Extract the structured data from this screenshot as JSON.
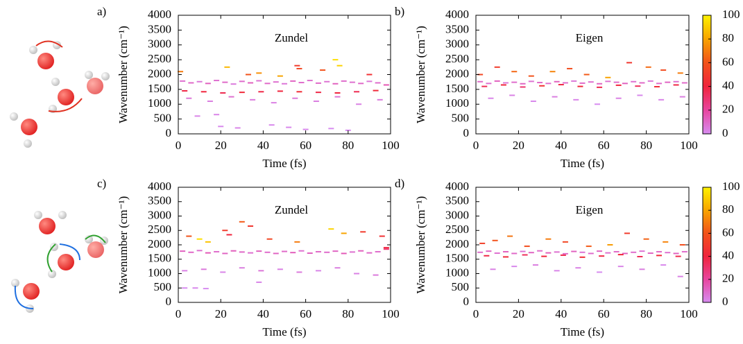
{
  "chart_data": [
    {
      "type": "scatter",
      "panel_label": "a)",
      "title": "Zundel",
      "xlabel": "Time (fs)",
      "ylabel": "Wavenumber (cm⁻¹)",
      "xlim": [
        0,
        100
      ],
      "xticks": [
        0,
        20,
        40,
        60,
        80,
        100
      ],
      "ylim": [
        0,
        4000
      ],
      "yticks": [
        0,
        500,
        1000,
        1500,
        2000,
        2500,
        3000,
        3500,
        4000
      ],
      "clim": [
        0,
        100
      ],
      "colormap": [
        "#d78cf0",
        "#e8459f",
        "#f0243c",
        "#f2521a",
        "#f8a400",
        "#fff200"
      ],
      "x": [
        2,
        6,
        10,
        14,
        18,
        22,
        26,
        30,
        34,
        38,
        42,
        46,
        50,
        54,
        58,
        62,
        66,
        70,
        74,
        78,
        82,
        86,
        90,
        94,
        98,
        3,
        12,
        21,
        30,
        39,
        48,
        57,
        66,
        75,
        84,
        93,
        5,
        15,
        25,
        35,
        45,
        55,
        65,
        75,
        85,
        95,
        1,
        23,
        33,
        56,
        57,
        74,
        76,
        38,
        68,
        48,
        90,
        20,
        28,
        60,
        72,
        52,
        9,
        44,
        80,
        18
      ],
      "values": [
        1780,
        1720,
        1760,
        1700,
        1800,
        1740,
        1680,
        1770,
        1720,
        1790,
        1700,
        1750,
        1690,
        1780,
        1730,
        1800,
        1710,
        1760,
        1690,
        1780,
        1740,
        1700,
        1770,
        1720,
        1650,
        1450,
        1420,
        1380,
        1400,
        1420,
        1440,
        1420,
        1400,
        1380,
        1420,
        1460,
        1200,
        1100,
        1250,
        1150,
        1050,
        1200,
        1100,
        1250,
        1000,
        1150,
        2100,
        2250,
        2000,
        2300,
        2200,
        2500,
        2300,
        2050,
        2150,
        1950,
        2000,
        250,
        200,
        150,
        180,
        220,
        600,
        300,
        120,
        650
      ],
      "intensity": [
        8,
        10,
        6,
        12,
        8,
        10,
        5,
        9,
        12,
        7,
        10,
        8,
        6,
        11,
        9,
        8,
        10,
        7,
        12,
        9,
        8,
        10,
        6,
        9,
        15,
        38,
        40,
        36,
        42,
        38,
        40,
        44,
        38,
        40,
        36,
        42,
        6,
        4,
        8,
        5,
        3,
        6,
        4,
        7,
        3,
        5,
        70,
        85,
        60,
        50,
        55,
        95,
        92,
        75,
        60,
        80,
        45,
        1,
        2,
        1,
        0,
        1,
        2,
        1,
        0,
        2
      ]
    },
    {
      "type": "scatter",
      "panel_label": "b)",
      "title": "Eigen",
      "xlabel": "Time (fs)",
      "ylabel": "Wavenumber (cm⁻¹)",
      "xlim": [
        0,
        100
      ],
      "xticks": [
        0,
        20,
        40,
        60,
        80,
        100
      ],
      "ylim": [
        0,
        4000
      ],
      "yticks": [
        0,
        500,
        1000,
        1500,
        2000,
        2500,
        3000,
        3500,
        4000
      ],
      "clim": [
        0,
        100
      ],
      "cticks": [
        0,
        20,
        40,
        60,
        80,
        100
      ],
      "colorbar": true,
      "colormap": [
        "#d78cf0",
        "#e8459f",
        "#f0243c",
        "#f2521a",
        "#f8a400",
        "#fff200"
      ],
      "x": [
        2,
        6,
        10,
        14,
        18,
        22,
        26,
        30,
        34,
        38,
        42,
        46,
        50,
        54,
        58,
        62,
        66,
        70,
        74,
        78,
        82,
        86,
        90,
        94,
        98,
        4,
        13,
        22,
        31,
        40,
        49,
        58,
        67,
        76,
        85,
        94,
        7,
        17,
        27,
        37,
        47,
        57,
        67,
        77,
        87,
        97,
        2,
        10,
        18,
        26,
        36,
        44,
        52,
        62,
        72,
        81,
        88,
        96
      ],
      "values": [
        1760,
        1700,
        1780,
        1720,
        1740,
        1690,
        1770,
        1730,
        1700,
        1760,
        1720,
        1780,
        1710,
        1750,
        1690,
        1770,
        1740,
        1700,
        1760,
        1720,
        1780,
        1700,
        1740,
        1760,
        1720,
        1600,
        1650,
        1580,
        1620,
        1660,
        1600,
        1570,
        1640,
        1610,
        1590,
        1650,
        1200,
        1300,
        1100,
        1250,
        1150,
        1000,
        1200,
        1300,
        1150,
        1250,
        2000,
        2250,
        2100,
        1950,
        2100,
        2200,
        2000,
        1900,
        2400,
        2250,
        2150,
        2050
      ],
      "intensity": [
        10,
        8,
        12,
        6,
        9,
        11,
        7,
        10,
        8,
        12,
        9,
        6,
        10,
        8,
        11,
        7,
        9,
        12,
        8,
        10,
        6,
        9,
        11,
        8,
        10,
        35,
        40,
        30,
        45,
        38,
        42,
        36,
        40,
        34,
        44,
        38,
        2,
        3,
        1,
        4,
        2,
        0,
        3,
        1,
        2,
        4,
        55,
        50,
        65,
        60,
        72,
        58,
        62,
        80,
        48,
        66,
        57,
        70
      ]
    },
    {
      "type": "scatter",
      "panel_label": "c)",
      "title": "Zundel",
      "xlabel": "Time (fs)",
      "ylabel": "Wavenumber (cm⁻¹)",
      "xlim": [
        0,
        100
      ],
      "xticks": [
        0,
        20,
        40,
        60,
        80,
        100
      ],
      "ylim": [
        0,
        4000
      ],
      "yticks": [
        0,
        500,
        1000,
        1500,
        2000,
        2500,
        3000,
        3500,
        4000
      ],
      "clim": [
        0,
        100
      ],
      "colormap": [
        "#d78cf0",
        "#e8459f",
        "#f0243c",
        "#f2521a",
        "#f8a400",
        "#fff200"
      ],
      "x": [
        2,
        6,
        10,
        14,
        18,
        22,
        26,
        30,
        34,
        38,
        42,
        46,
        50,
        54,
        58,
        62,
        66,
        70,
        74,
        78,
        82,
        86,
        90,
        94,
        98,
        3,
        12,
        21,
        30,
        39,
        48,
        57,
        66,
        75,
        84,
        93,
        5,
        10,
        14,
        22,
        24,
        30,
        34,
        43,
        56,
        72,
        78,
        87,
        96,
        98,
        3,
        8,
        13,
        38
      ],
      "values": [
        1780,
        1740,
        1800,
        1720,
        1760,
        1700,
        1790,
        1750,
        1720,
        1780,
        1740,
        1700,
        1770,
        1730,
        1790,
        1710,
        1760,
        1740,
        1780,
        1700,
        1750,
        1790,
        1720,
        1760,
        1850,
        1100,
        1150,
        1050,
        1200,
        1100,
        1150,
        1050,
        1100,
        1200,
        1000,
        950,
        2300,
        2200,
        2100,
        2500,
        2350,
        2800,
        2650,
        2200,
        2100,
        2550,
        2400,
        2450,
        2300,
        1900,
        500,
        500,
        480,
        700
      ],
      "intensity": [
        12,
        10,
        8,
        14,
        9,
        11,
        13,
        10,
        8,
        12,
        9,
        11,
        10,
        13,
        8,
        12,
        10,
        9,
        11,
        14,
        8,
        12,
        10,
        9,
        30,
        3,
        5,
        2,
        4,
        6,
        3,
        5,
        2,
        4,
        3,
        5,
        60,
        95,
        88,
        50,
        40,
        62,
        48,
        55,
        70,
        92,
        80,
        50,
        45,
        40,
        0,
        1,
        0,
        2
      ]
    },
    {
      "type": "scatter",
      "panel_label": "d)",
      "title": "Eigen",
      "xlabel": "Time (fs)",
      "ylabel": "Wavenumber (cm⁻¹)",
      "xlim": [
        0,
        100
      ],
      "xticks": [
        0,
        20,
        40,
        60,
        80,
        100
      ],
      "ylim": [
        0,
        4000
      ],
      "yticks": [
        0,
        500,
        1000,
        1500,
        2000,
        2500,
        3000,
        3500,
        4000
      ],
      "clim": [
        0,
        100
      ],
      "cticks": [
        0,
        20,
        40,
        60,
        80,
        100
      ],
      "colorbar": true,
      "colormap": [
        "#d78cf0",
        "#e8459f",
        "#f0243c",
        "#f2521a",
        "#f8a400",
        "#fff200"
      ],
      "x": [
        2,
        6,
        10,
        14,
        18,
        22,
        26,
        30,
        34,
        38,
        42,
        46,
        50,
        54,
        58,
        62,
        66,
        70,
        74,
        78,
        82,
        86,
        90,
        94,
        98,
        5,
        14,
        23,
        32,
        41,
        50,
        59,
        68,
        77,
        86,
        95,
        8,
        18,
        28,
        38,
        48,
        58,
        68,
        78,
        88,
        96,
        3,
        9,
        16,
        24,
        34,
        42,
        53,
        63,
        71,
        80,
        89,
        97
      ],
      "values": [
        1740,
        1780,
        1710,
        1760,
        1700,
        1770,
        1730,
        1790,
        1720,
        1750,
        1690,
        1770,
        1740,
        1700,
        1780,
        1720,
        1760,
        1700,
        1740,
        1780,
        1710,
        1760,
        1730,
        1700,
        1760,
        1620,
        1580,
        1650,
        1600,
        1640,
        1570,
        1610,
        1660,
        1590,
        1630,
        1600,
        1150,
        1250,
        1300,
        1100,
        1200,
        1050,
        1250,
        1150,
        1300,
        900,
        2050,
        2150,
        2300,
        1950,
        2200,
        2100,
        1950,
        2000,
        2400,
        2200,
        2100,
        2000
      ],
      "intensity": [
        9,
        11,
        8,
        12,
        10,
        7,
        11,
        9,
        13,
        8,
        10,
        12,
        7,
        9,
        11,
        8,
        10,
        12,
        9,
        7,
        11,
        10,
        8,
        12,
        9,
        38,
        42,
        34,
        40,
        36,
        44,
        38,
        40,
        35,
        42,
        37,
        3,
        1,
        4,
        2,
        3,
        0,
        2,
        4,
        1,
        3,
        52,
        60,
        68,
        58,
        70,
        55,
        62,
        78,
        50,
        64,
        72,
        58
      ]
    }
  ]
}
